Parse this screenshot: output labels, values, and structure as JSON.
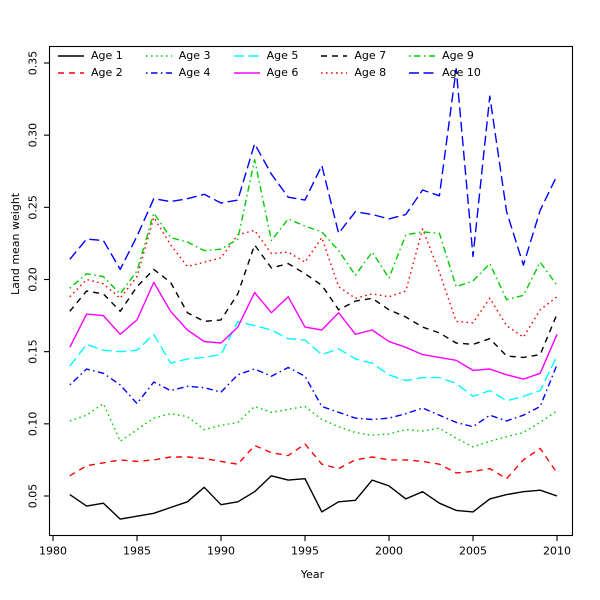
{
  "figure": {
    "background": "#FFFFFF",
    "frame_color": "#000000",
    "tick_color": "#000000",
    "text_color": "#000000"
  },
  "chart_data": {
    "type": "line",
    "title": "",
    "xlabel": "Year",
    "ylabel": "Land mean weight",
    "x_ticks": [
      1980,
      1985,
      1990,
      1995,
      2000,
      2005,
      2010
    ],
    "y_ticks": [
      "0.05",
      "0.10",
      "0.15",
      "0.20",
      "0.25",
      "0.30",
      "0.35"
    ],
    "y_tick_values": [
      0.05,
      0.1,
      0.15,
      0.2,
      0.25,
      0.3,
      0.35
    ],
    "xlim": [
      1980,
      2010
    ],
    "ylim": [
      0.05,
      0.35
    ],
    "grid": "off",
    "legend_position": "top-inside",
    "legend_columns": 5,
    "x": [
      1981,
      1982,
      1983,
      1984,
      1985,
      1986,
      1987,
      1988,
      1989,
      1990,
      1991,
      1992,
      1993,
      1994,
      1995,
      1996,
      1997,
      1998,
      1999,
      2000,
      2001,
      2002,
      2003,
      2004,
      2005,
      2006,
      2007,
      2008,
      2009,
      2010
    ],
    "series": [
      {
        "name": "Age 1",
        "color": "#000000",
        "style": "solid",
        "values": [
          0.051,
          0.043,
          0.045,
          0.034,
          0.036,
          0.038,
          0.042,
          0.046,
          0.056,
          0.044,
          0.046,
          0.053,
          0.064,
          0.061,
          0.062,
          0.039,
          0.046,
          0.047,
          0.061,
          0.057,
          0.048,
          0.053,
          0.045,
          0.04,
          0.039,
          0.048,
          0.051,
          0.053,
          0.054,
          0.05
        ]
      },
      {
        "name": "Age 2",
        "color": "#FF0000",
        "style": "dashed",
        "values": [
          0.064,
          0.071,
          0.073,
          0.075,
          0.074,
          0.075,
          0.077,
          0.077,
          0.076,
          0.074,
          0.072,
          0.085,
          0.08,
          0.078,
          0.086,
          0.072,
          0.069,
          0.075,
          0.077,
          0.075,
          0.075,
          0.074,
          0.072,
          0.066,
          0.067,
          0.069,
          0.062,
          0.075,
          0.083,
          0.066
        ]
      },
      {
        "name": "Age 3",
        "color": "#00CD00",
        "style": "dotted",
        "values": [
          0.102,
          0.106,
          0.114,
          0.088,
          0.096,
          0.104,
          0.107,
          0.105,
          0.096,
          0.099,
          0.101,
          0.112,
          0.108,
          0.11,
          0.112,
          0.103,
          0.098,
          0.094,
          0.092,
          0.093,
          0.096,
          0.095,
          0.097,
          0.09,
          0.084,
          0.088,
          0.091,
          0.094,
          0.101,
          0.109
        ]
      },
      {
        "name": "Age 4",
        "color": "#0000FF",
        "style": "dashdot",
        "values": [
          0.127,
          0.138,
          0.135,
          0.127,
          0.114,
          0.129,
          0.123,
          0.126,
          0.125,
          0.122,
          0.134,
          0.138,
          0.133,
          0.139,
          0.133,
          0.112,
          0.108,
          0.104,
          0.103,
          0.104,
          0.107,
          0.111,
          0.106,
          0.101,
          0.098,
          0.106,
          0.102,
          0.106,
          0.112,
          0.141
        ]
      },
      {
        "name": "Age 5",
        "color": "#00FFFF",
        "style": "longdash",
        "values": [
          0.14,
          0.155,
          0.151,
          0.15,
          0.151,
          0.162,
          0.142,
          0.145,
          0.146,
          0.148,
          0.171,
          0.168,
          0.165,
          0.159,
          0.158,
          0.148,
          0.152,
          0.145,
          0.142,
          0.134,
          0.13,
          0.132,
          0.132,
          0.128,
          0.119,
          0.123,
          0.116,
          0.119,
          0.123,
          0.147
        ]
      },
      {
        "name": "Age 6",
        "color": "#FF00FF",
        "style": "solid",
        "values": [
          0.153,
          0.176,
          0.175,
          0.162,
          0.172,
          0.198,
          0.178,
          0.165,
          0.157,
          0.156,
          0.167,
          0.191,
          0.177,
          0.188,
          0.167,
          0.165,
          0.177,
          0.162,
          0.165,
          0.157,
          0.153,
          0.148,
          0.146,
          0.144,
          0.137,
          0.138,
          0.134,
          0.131,
          0.135,
          0.162
        ]
      },
      {
        "name": "Age 7",
        "color": "#000000",
        "style": "dashed",
        "values": [
          0.178,
          0.192,
          0.19,
          0.178,
          0.195,
          0.207,
          0.198,
          0.177,
          0.171,
          0.172,
          0.19,
          0.224,
          0.208,
          0.211,
          0.204,
          0.196,
          0.179,
          0.185,
          0.187,
          0.179,
          0.174,
          0.167,
          0.163,
          0.156,
          0.155,
          0.159,
          0.147,
          0.146,
          0.148,
          0.176
        ]
      },
      {
        "name": "Age 8",
        "color": "#FF0000",
        "style": "dotted",
        "values": [
          0.188,
          0.2,
          0.197,
          0.187,
          0.202,
          0.243,
          0.224,
          0.209,
          0.212,
          0.215,
          0.231,
          0.234,
          0.218,
          0.219,
          0.212,
          0.229,
          0.195,
          0.187,
          0.19,
          0.188,
          0.192,
          0.235,
          0.205,
          0.171,
          0.17,
          0.187,
          0.168,
          0.16,
          0.179,
          0.188
        ]
      },
      {
        "name": "Age 9",
        "color": "#00CD00",
        "style": "dashdot",
        "values": [
          0.194,
          0.204,
          0.202,
          0.19,
          0.206,
          0.246,
          0.229,
          0.226,
          0.22,
          0.221,
          0.228,
          0.283,
          0.227,
          0.242,
          0.237,
          0.233,
          0.22,
          0.203,
          0.219,
          0.201,
          0.231,
          0.233,
          0.232,
          0.195,
          0.199,
          0.211,
          0.186,
          0.189,
          0.212,
          0.196
        ]
      },
      {
        "name": "Age 10",
        "color": "#0000FF",
        "style": "longdash",
        "values": [
          0.214,
          0.228,
          0.227,
          0.207,
          0.23,
          0.256,
          0.254,
          0.256,
          0.259,
          0.253,
          0.255,
          0.294,
          0.273,
          0.257,
          0.255,
          0.279,
          0.232,
          0.247,
          0.245,
          0.242,
          0.245,
          0.262,
          0.258,
          0.346,
          0.216,
          0.327,
          0.247,
          0.21,
          0.248,
          0.272
        ]
      }
    ]
  }
}
